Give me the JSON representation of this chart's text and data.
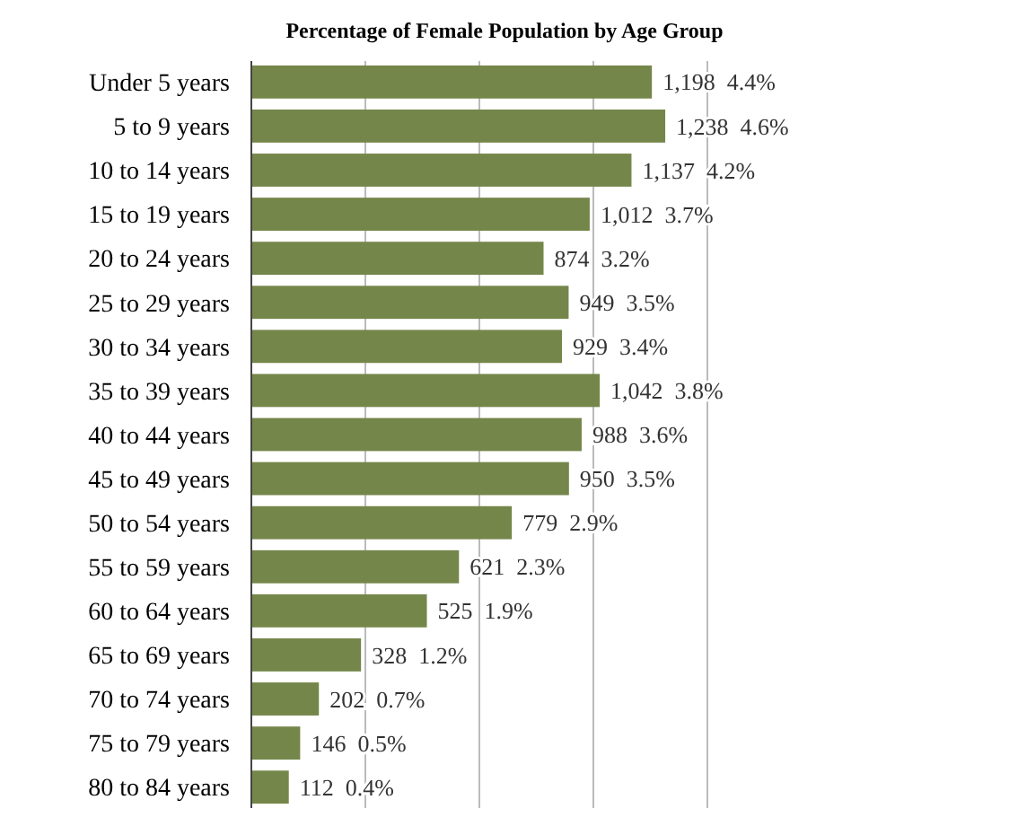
{
  "chart_data": {
    "type": "bar",
    "orientation": "horizontal",
    "title": "Percentage of Female Population by Age Group",
    "categories": [
      "Under 5 years",
      "5 to 9 years",
      "10 to 14 years",
      "15 to 19 years",
      "20 to 24 years",
      "25 to 29 years",
      "30 to 34 years",
      "35 to 39 years",
      "40 to 44 years",
      "45 to 49 years",
      "50 to 54 years",
      "55 to 59 years",
      "60 to 64 years",
      "65 to 69 years",
      "70 to 74 years",
      "75 to 79 years",
      "80 to 84 years"
    ],
    "values": [
      1198,
      1238,
      1137,
      1012,
      874,
      949,
      929,
      1042,
      988,
      950,
      779,
      621,
      525,
      328,
      202,
      146,
      112
    ],
    "value_labels": [
      "1,198  4.4%",
      "1,238  4.6%",
      "1,137  4.2%",
      "1,012  3.7%",
      "874  3.2%",
      "949  3.5%",
      "929  3.4%",
      "1,042  3.8%",
      "988  3.6%",
      "950  3.5%",
      "779  2.9%",
      "621  2.3%",
      "525  1.9%",
      "328  1.2%",
      "202  0.7%",
      "146  0.5%",
      "112  0.4%"
    ],
    "color": "#75864a",
    "xlim": [
      0,
      1364
    ],
    "xticks": [
      {
        "value": 0,
        "label": null
      },
      {
        "value": 341,
        "label": null
      },
      {
        "value": 682,
        "label": null
      },
      {
        "value": 1023,
        "label": null
      },
      {
        "value": 1364,
        "label": null
      }
    ],
    "grid": "x",
    "tick_labels": "y"
  }
}
